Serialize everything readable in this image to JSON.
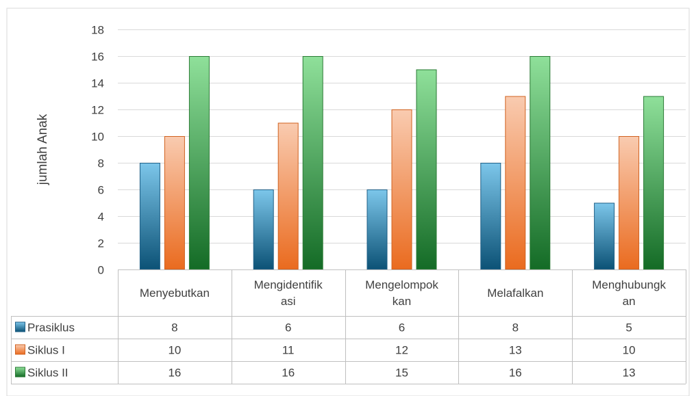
{
  "chart_data": {
    "type": "bar",
    "title": "",
    "xlabel": "",
    "ylabel": "jumlah Anak",
    "ylim": [
      0,
      18
    ],
    "yticks": [
      0,
      2,
      4,
      6,
      8,
      10,
      12,
      14,
      16,
      18
    ],
    "grid": true,
    "legend": "data-table",
    "categories": [
      [
        "Menyebutkan"
      ],
      [
        "Mengidentifik",
        "asi"
      ],
      [
        "Mengelompok",
        "kan"
      ],
      [
        "Melafalkan"
      ],
      [
        "Menghubungk",
        "an"
      ]
    ],
    "series": [
      {
        "name": "Prasiklus",
        "values": [
          8,
          6,
          6,
          8,
          5
        ],
        "color_top": "#7cc6ea",
        "color_bottom": "#0c5276",
        "stroke": "#1f5f86"
      },
      {
        "name": "Siklus I",
        "values": [
          10,
          11,
          12,
          13,
          10
        ],
        "color_top": "#f9cbb0",
        "color_bottom": "#ea6b1f",
        "stroke": "#d0611f"
      },
      {
        "name": "Siklus II",
        "values": [
          16,
          16,
          15,
          16,
          13
        ],
        "color_top": "#8fe09a",
        "color_bottom": "#146b26",
        "stroke": "#2a7a34"
      }
    ]
  }
}
